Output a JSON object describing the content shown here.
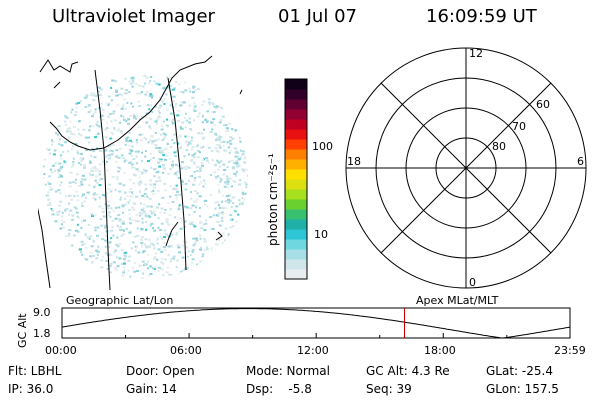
{
  "header": {
    "instrument": "Ultraviolet Imager",
    "date": "01 Jul 07",
    "time": "16:09:59 UT"
  },
  "colorbar": {
    "unit_label": "photon cm⁻²s⁻¹",
    "ticks": [
      "100",
      "10"
    ],
    "tick_values": [
      100,
      10
    ],
    "colors": [
      "#e8eef0",
      "#cfe6ea",
      "#a8dfe6",
      "#6fd7e0",
      "#2ec5d6",
      "#20b0a8",
      "#38c070",
      "#6ad030",
      "#a8e020",
      "#dde010",
      "#ffe000",
      "#ffb000",
      "#ff8000",
      "#ff4000",
      "#e81010",
      "#c00020",
      "#900030",
      "#600030",
      "#300028",
      "#100018"
    ]
  },
  "polar_plot": {
    "mlt_labels": {
      "top": "12",
      "left": "18",
      "right": "6",
      "bottom": "0"
    },
    "lat_labels": [
      "60",
      "70",
      "80"
    ]
  },
  "coord_labels": {
    "left": "Geographic Lat/Lon",
    "right": "Apex MLat/MLT"
  },
  "altitude_plot": {
    "ylabel": "GC Alt",
    "y_ticks": [
      "9.0",
      "1.8"
    ],
    "y_range": [
      1.8,
      9.0
    ],
    "x_ticks": [
      "00:00",
      "06:00",
      "12:00",
      "18:00",
      "23:59"
    ],
    "current_time_hours": 16.17,
    "marker_color": "#cc0000"
  },
  "info": {
    "flt": "Flt: LBHL",
    "ip": "IP: 36.0",
    "door": "Door: Open",
    "gain": "Gain: 14",
    "mode": "Mode: Normal",
    "dsp": "Dsp:    -5.8",
    "gc_alt": "GC Alt: 4.3 Re",
    "seq": "Seq: 39",
    "glat": "GLat: -25.4",
    "glon": "GLon: 157.5"
  }
}
